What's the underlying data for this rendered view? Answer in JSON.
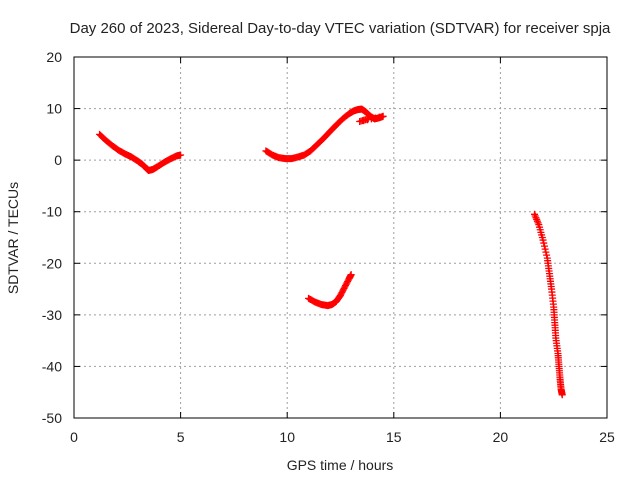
{
  "chart_data": {
    "type": "scatter",
    "title": "Day 260 of 2023, Sidereal Day-to-day VTEC variation (SDTVAR) for receiver spja",
    "xlabel": "GPS time / hours",
    "ylabel": "SDTVAR / TECUs",
    "xlim": [
      0,
      25
    ],
    "ylim": [
      -50,
      20
    ],
    "x_ticks": [
      0,
      5,
      10,
      15,
      20,
      25
    ],
    "y_ticks": [
      -50,
      -40,
      -30,
      -20,
      -10,
      0,
      10,
      20
    ],
    "x_tick_labels": [
      "0",
      "5",
      "10",
      "15",
      "20",
      "25"
    ],
    "y_tick_labels": [
      "-50",
      "-40",
      "-30",
      "-20",
      "-10",
      "0",
      "10",
      "20"
    ],
    "grid": true,
    "marker": "plus",
    "color": "#ff0000",
    "series": [
      {
        "points": [
          [
            1.2,
            5.0
          ],
          [
            1.5,
            3.8
          ],
          [
            1.8,
            2.8
          ],
          [
            2.1,
            1.9
          ],
          [
            2.4,
            1.2
          ],
          [
            2.7,
            0.6
          ],
          [
            3.0,
            -0.2
          ],
          [
            3.2,
            -0.8
          ],
          [
            3.4,
            -1.6
          ],
          [
            3.5,
            -2.0
          ],
          [
            3.7,
            -1.8
          ],
          [
            3.9,
            -1.3
          ],
          [
            4.2,
            -0.5
          ],
          [
            4.5,
            0.2
          ],
          [
            4.8,
            0.8
          ],
          [
            5.0,
            1.0
          ]
        ]
      },
      {
        "points": [
          [
            9.0,
            1.8
          ],
          [
            9.3,
            1.0
          ],
          [
            9.6,
            0.5
          ],
          [
            9.9,
            0.3
          ],
          [
            10.2,
            0.3
          ],
          [
            10.5,
            0.6
          ],
          [
            10.8,
            1.0
          ],
          [
            11.1,
            1.8
          ],
          [
            11.4,
            3.0
          ],
          [
            11.7,
            4.2
          ],
          [
            12.0,
            5.5
          ],
          [
            12.3,
            6.8
          ],
          [
            12.6,
            8.0
          ],
          [
            12.9,
            9.0
          ],
          [
            13.1,
            9.5
          ],
          [
            13.3,
            9.8
          ],
          [
            13.5,
            9.9
          ],
          [
            13.7,
            9.3
          ],
          [
            13.9,
            8.5
          ],
          [
            14.1,
            8.0
          ],
          [
            14.3,
            8.2
          ],
          [
            14.5,
            8.5
          ],
          [
            13.4,
            7.5
          ],
          [
            13.8,
            8.0
          ]
        ]
      },
      {
        "points": [
          [
            11.0,
            -26.8
          ],
          [
            11.3,
            -27.5
          ],
          [
            11.6,
            -28.0
          ],
          [
            11.9,
            -28.2
          ],
          [
            12.1,
            -28.0
          ],
          [
            12.3,
            -27.4
          ],
          [
            12.5,
            -26.2
          ],
          [
            12.7,
            -24.6
          ],
          [
            12.9,
            -23.0
          ],
          [
            13.0,
            -22.2
          ]
        ]
      },
      {
        "points": [
          [
            21.6,
            -10.5
          ],
          [
            21.8,
            -12.5
          ],
          [
            22.0,
            -15.5
          ],
          [
            22.2,
            -19.0
          ],
          [
            22.3,
            -22.0
          ],
          [
            22.4,
            -25.0
          ],
          [
            22.5,
            -28.5
          ],
          [
            22.55,
            -31.5
          ],
          [
            22.6,
            -34.5
          ],
          [
            22.7,
            -37.5
          ],
          [
            22.75,
            -40.0
          ],
          [
            22.8,
            -42.5
          ],
          [
            22.85,
            -44.5
          ],
          [
            22.9,
            -45.5
          ]
        ]
      }
    ]
  }
}
